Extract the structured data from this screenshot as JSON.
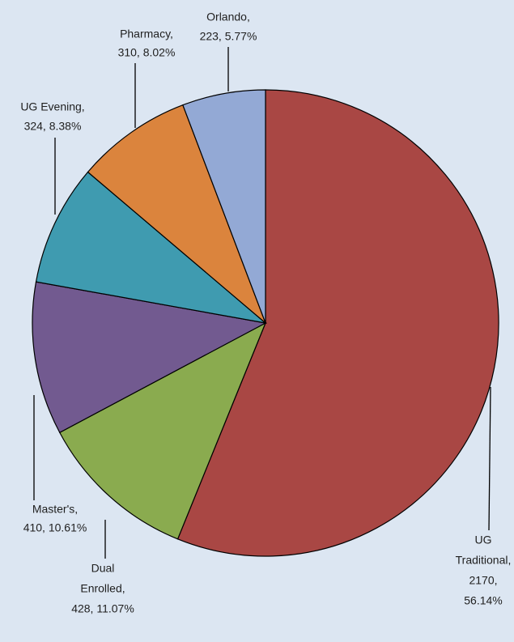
{
  "chart_data": {
    "type": "pie",
    "categories": [
      "UG Traditional",
      "Dual Enrolled",
      "Master's",
      "UG Evening",
      "Pharmacy",
      "Orlando"
    ],
    "values": [
      2170,
      428,
      410,
      324,
      310,
      223
    ],
    "value_labels": [
      [
        "UG",
        "Traditional,",
        "2170,",
        "56.14%"
      ],
      [
        "Dual",
        "Enrolled,",
        "428, 11.07%"
      ],
      [
        "Master's,",
        "410, 10.61%"
      ],
      [
        "UG Evening,",
        "324, 8.38%"
      ],
      [
        "Pharmacy,",
        "310, 8.02%"
      ],
      [
        "Orlando,",
        "223, 5.77%"
      ]
    ],
    "colors": [
      "#a94744",
      "#8aab4f",
      "#725a90",
      "#3f9bb0",
      "#db843d",
      "#93a9d5"
    ]
  }
}
